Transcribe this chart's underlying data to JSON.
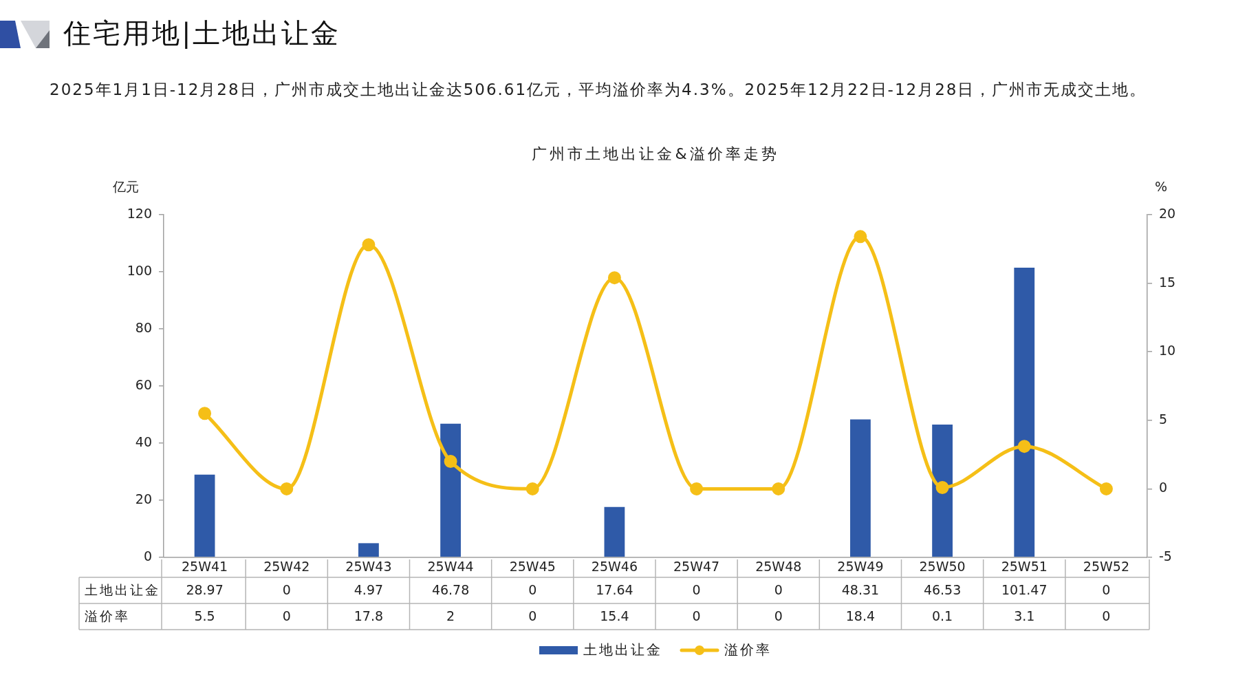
{
  "chart_data": {
    "type": "bar",
    "title": "广州市土地出让金&溢价率走势",
    "annotations": [
      "住宅用地|土地出让金",
      "2025年1月1日-12月28日，广州市成交土地出让金达506.61亿元，平均溢价率为4.3%。2025年12月22日-12月28日，广州市无成交土地。"
    ],
    "ylabel": "亿元",
    "y2label": "%",
    "categories": [
      "25W41",
      "25W42",
      "25W43",
      "25W44",
      "25W45",
      "25W46",
      "25W47",
      "25W48",
      "25W49",
      "25W50",
      "25W51",
      "25W52"
    ],
    "series": [
      {
        "name": "土地出让金",
        "color": "#2f5aa8",
        "values": [
          28.97,
          0,
          4.97,
          46.78,
          0,
          17.64,
          0,
          0,
          48.31,
          46.53,
          101.47,
          0
        ]
      },
      {
        "name": "溢价率",
        "type": "line",
        "axis": "y2",
        "color": "#f5bf17",
        "values": [
          5.5,
          0,
          17.8,
          2,
          0,
          15.4,
          0,
          0,
          18.4,
          0.1,
          3.1,
          0
        ]
      }
    ],
    "ylim": [
      0,
      120
    ],
    "yticks": [
      0,
      20,
      40,
      60,
      80,
      100,
      120
    ],
    "y2lim": [
      -5,
      20
    ],
    "y2ticks": [
      -5,
      0,
      5,
      10,
      15,
      20
    ],
    "grid": false,
    "legend": "bottom",
    "marker": "circle",
    "data_labels": true
  }
}
